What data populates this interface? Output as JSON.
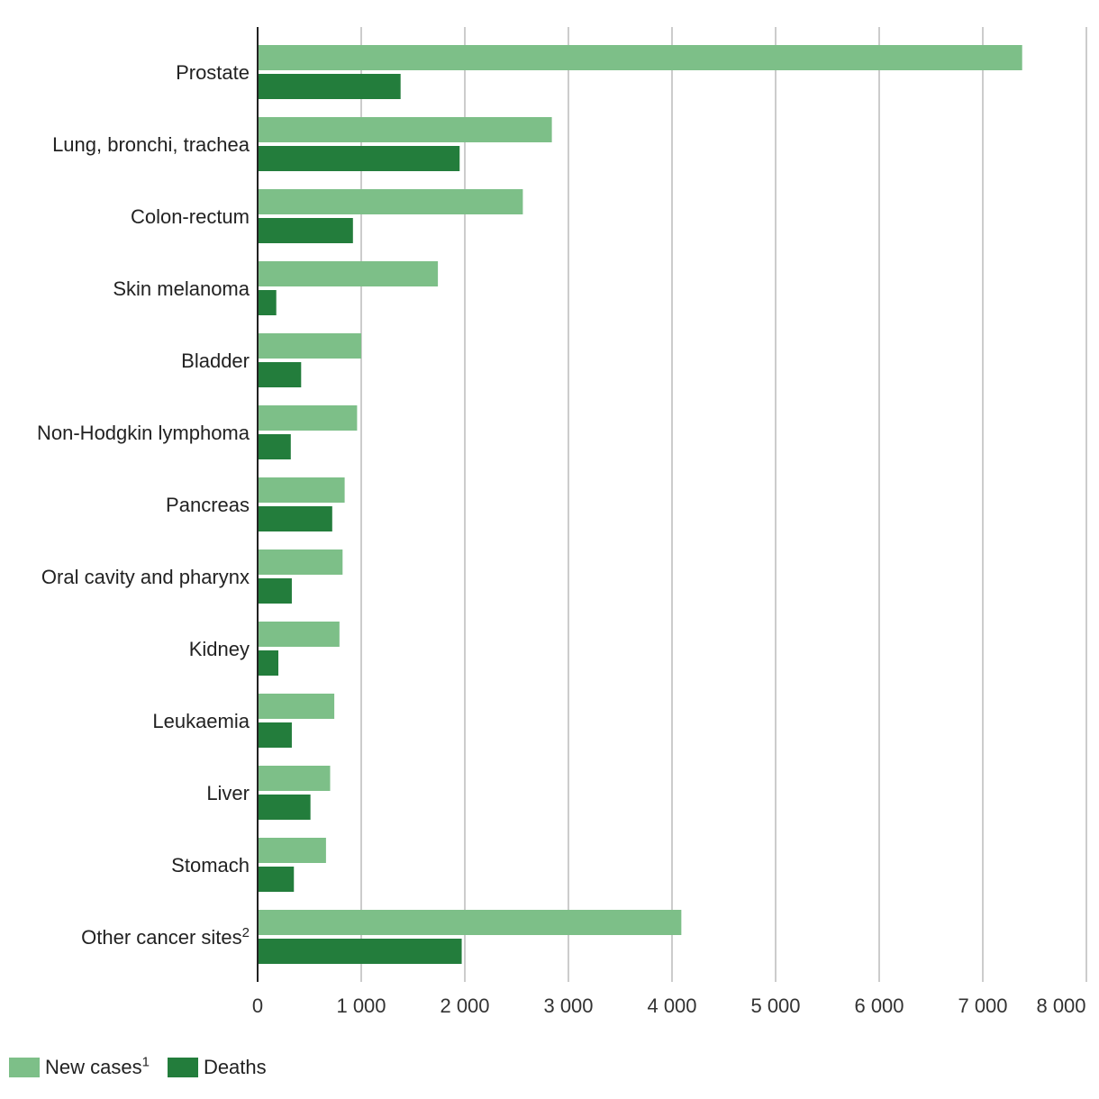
{
  "colors": {
    "new_cases": "#7dbf88",
    "deaths": "#237d3c",
    "grid": "#cccccc",
    "axis": "#222222"
  },
  "legend": {
    "new_cases_label": "New cases",
    "new_cases_sup": "1",
    "deaths_label": "Deaths"
  },
  "chart_data": {
    "type": "bar",
    "orientation": "horizontal",
    "categories": [
      "Prostate",
      "Lung, bronchi, trachea",
      "Colon-rectum",
      "Skin melanoma",
      "Bladder",
      "Non-Hodgkin lymphoma",
      "Pancreas",
      "Oral cavity and pharynx",
      "Kidney",
      "Leukaemia",
      "Liver",
      "Stomach",
      "Other cancer sites"
    ],
    "category_superscripts": [
      "",
      "",
      "",
      "",
      "",
      "",
      "",
      "",
      "",
      "",
      "",
      "",
      "2"
    ],
    "series": [
      {
        "name": "New cases",
        "values": [
          7380,
          2840,
          2560,
          1740,
          1000,
          960,
          840,
          820,
          790,
          740,
          700,
          660,
          4090
        ]
      },
      {
        "name": "Deaths",
        "values": [
          1380,
          1950,
          920,
          180,
          420,
          320,
          720,
          330,
          200,
          330,
          510,
          350,
          1970
        ]
      }
    ],
    "xlim": [
      0,
      8000
    ],
    "xticks": [
      0,
      1000,
      2000,
      3000,
      4000,
      5000,
      6000,
      7000,
      8000
    ],
    "xtick_labels": [
      "0",
      "1 000",
      "2 000",
      "3 000",
      "4 000",
      "5 000",
      "6 000",
      "7 000",
      "8 000"
    ],
    "grid": true,
    "legend_position": "bottom-left"
  }
}
